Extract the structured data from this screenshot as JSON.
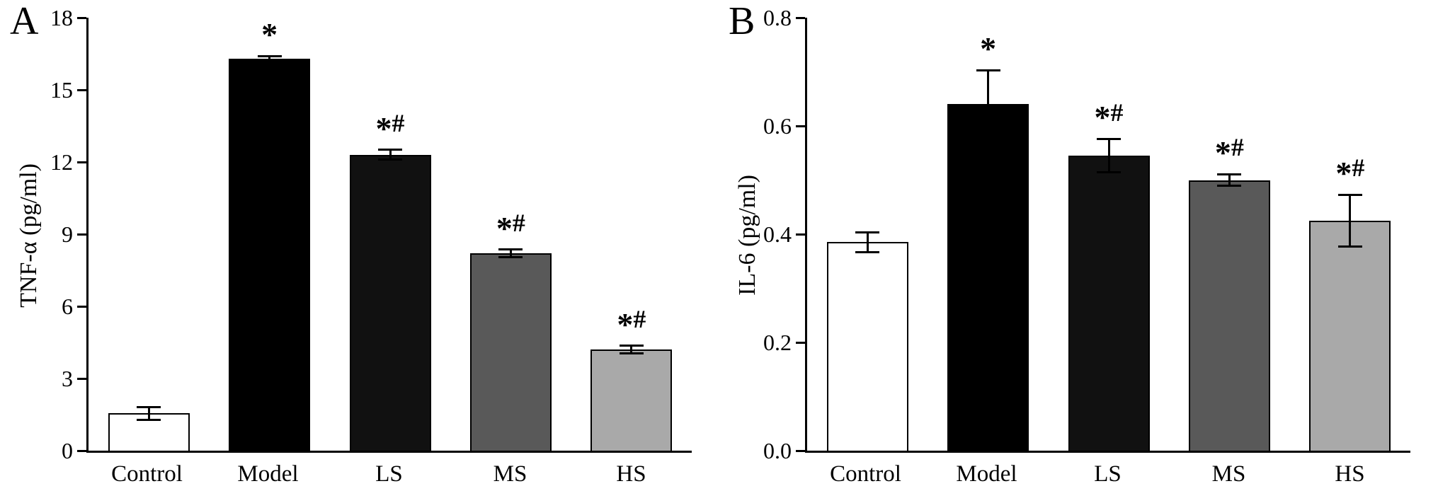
{
  "figure": {
    "background": "#ffffff",
    "axis_color": "#000000"
  },
  "chart_data": [
    {
      "type": "bar",
      "panel_label": "A",
      "title": "",
      "xlabel": "",
      "ylabel": "TNF-α (pg/ml)",
      "categories": [
        "Control",
        "Model",
        "LS",
        "MS",
        "HS"
      ],
      "values": [
        1.55,
        16.3,
        12.3,
        8.2,
        4.2
      ],
      "errors": [
        0.3,
        0.15,
        0.25,
        0.2,
        0.2
      ],
      "annotations": [
        "",
        "*",
        "*#",
        "*#",
        "*#"
      ],
      "bar_colors": [
        "#ffffff",
        "#000000",
        "#111111",
        "#595959",
        "#a9a9a9"
      ],
      "ylim": [
        0,
        18
      ],
      "yticks": [
        0,
        3,
        6,
        9,
        12,
        15,
        18
      ],
      "ytick_labels": [
        "0",
        "3",
        "6",
        "9",
        "12",
        "15",
        "18"
      ],
      "grid": false,
      "legend_position": "none"
    },
    {
      "type": "bar",
      "panel_label": "B",
      "title": "",
      "xlabel": "",
      "ylabel": "IL-6 (pg/ml)",
      "categories": [
        "Control",
        "Model",
        "LS",
        "MS",
        "HS"
      ],
      "values": [
        0.385,
        0.64,
        0.545,
        0.5,
        0.425
      ],
      "errors": [
        0.02,
        0.065,
        0.033,
        0.013,
        0.05
      ],
      "annotations": [
        "",
        "*",
        "*#",
        "*#",
        "*#"
      ],
      "bar_colors": [
        "#ffffff",
        "#000000",
        "#111111",
        "#595959",
        "#a9a9a9"
      ],
      "ylim": [
        0,
        0.8
      ],
      "yticks": [
        0,
        0.2,
        0.4,
        0.6,
        0.8
      ],
      "ytick_labels": [
        "0.0",
        "0.2",
        "0.4",
        "0.6",
        "0.8"
      ],
      "grid": false,
      "legend_position": "none"
    }
  ]
}
